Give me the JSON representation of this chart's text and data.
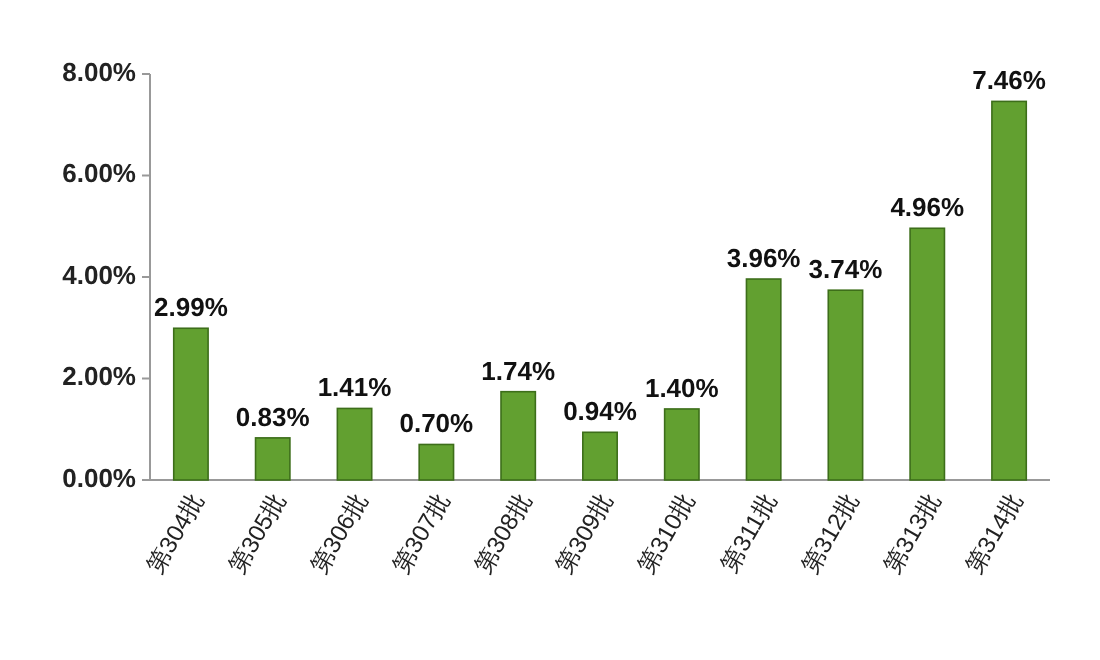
{
  "chart_data": {
    "type": "bar",
    "categories": [
      "第304批",
      "第305批",
      "第306批",
      "第307批",
      "第308批",
      "第309批",
      "第310批",
      "第311批",
      "第312批",
      "第313批",
      "第314批"
    ],
    "values": [
      2.99,
      0.83,
      1.41,
      0.7,
      1.74,
      0.94,
      1.4,
      3.96,
      3.74,
      4.96,
      7.46
    ],
    "value_labels": [
      "2.99%",
      "0.83%",
      "1.41%",
      "0.70%",
      "1.74%",
      "0.94%",
      "1.40%",
      "3.96%",
      "3.74%",
      "4.96%",
      "7.46%"
    ],
    "color": "#62a030",
    "ylim": [
      0,
      8
    ],
    "yticks": [
      {
        "value": 0,
        "label": "0.00%"
      },
      {
        "value": 2,
        "label": "2.00%"
      },
      {
        "value": 4,
        "label": "4.00%"
      },
      {
        "value": 6,
        "label": "6.00%"
      },
      {
        "value": 8,
        "label": "8.00%"
      }
    ]
  }
}
